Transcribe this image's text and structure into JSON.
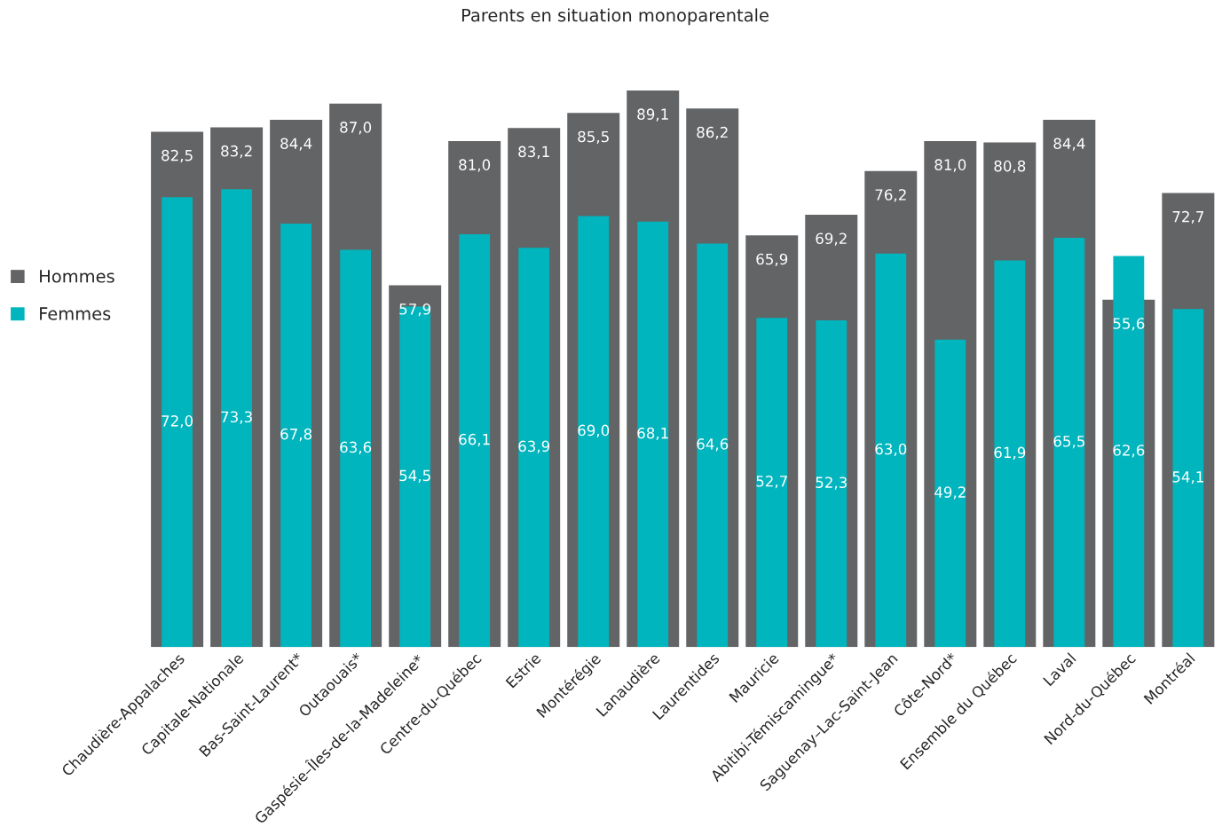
{
  "chart_data": {
    "type": "bar",
    "title": "Parents en situation monoparentale",
    "categories": [
      "Chaudière-Appalaches",
      "Capitale-Nationale",
      "Bas-Saint-Laurent*",
      "Outaouais*",
      "Gaspésie–Îles-de-la-Madeleine*",
      "Centre-du-Québec",
      "Estrie",
      "Montérégie",
      "Lanaudière",
      "Laurentides",
      "Mauricie",
      "Abitibi-Témiscamingue*",
      "Saguenay–Lac-Saint-Jean",
      "Côte-Nord*",
      "Ensemble du Québec",
      "Laval",
      "Nord-du-Québec",
      "Montréal"
    ],
    "series": [
      {
        "name": "Hommes",
        "color": "#636466",
        "values": [
          82.5,
          83.2,
          84.4,
          87.0,
          57.9,
          81.0,
          83.1,
          85.5,
          89.1,
          86.2,
          65.9,
          69.2,
          76.2,
          81.0,
          80.8,
          84.4,
          55.6,
          72.7
        ],
        "value_labels": [
          "82,5",
          "83,2",
          "84,4",
          "87,0",
          "57,9",
          "81,0",
          "83,1",
          "85,5",
          "89,1",
          "86,2",
          "65,9",
          "69,2",
          "76,2",
          "81,0",
          "80,8",
          "84,4",
          "55,6",
          "72,7"
        ]
      },
      {
        "name": "Femmes",
        "color": "#00b5bd",
        "values": [
          72.0,
          73.3,
          67.8,
          63.6,
          54.5,
          66.1,
          63.9,
          69.0,
          68.1,
          64.6,
          52.7,
          52.3,
          63.0,
          49.2,
          61.9,
          65.5,
          62.6,
          54.1
        ],
        "value_labels": [
          "72,0",
          "73,3",
          "67,8",
          "63,6",
          "54,5",
          "66,1",
          "63,9",
          "69,0",
          "68,1",
          "64,6",
          "52,7",
          "52,3",
          "63,0",
          "49,2",
          "61,9",
          "65,5",
          "62,6",
          "54,1"
        ]
      }
    ],
    "legend": "left",
    "grid": false
  }
}
